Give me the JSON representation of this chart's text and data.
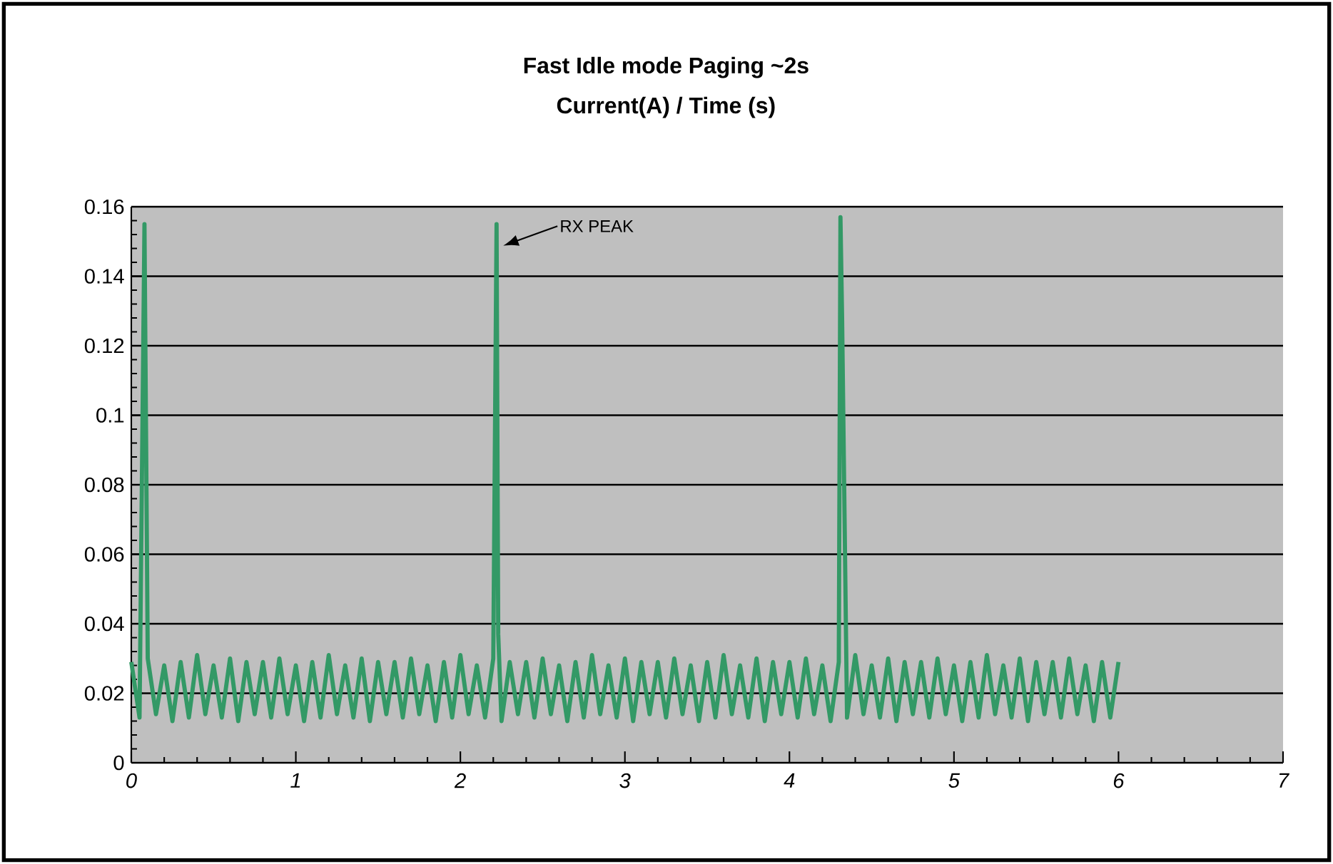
{
  "chart_data": {
    "type": "line",
    "title": "Fast Idle mode    Paging ~2s",
    "subtitle": "Current(A) / Time (s)",
    "annotations": [
      "RX PEAK"
    ],
    "series": [
      {
        "color": "#339966",
        "x": [
          0,
          0.05,
          0.08,
          0.1,
          0.15,
          0.2,
          0.25,
          0.3,
          0.35,
          0.4,
          0.45,
          0.5,
          0.55,
          0.6,
          0.65,
          0.7,
          0.75,
          0.8,
          0.85,
          0.9,
          0.95,
          1,
          1.05,
          1.1,
          1.15,
          1.2,
          1.25,
          1.3,
          1.35,
          1.4,
          1.45,
          1.5,
          1.55,
          1.6,
          1.65,
          1.7,
          1.75,
          1.8,
          1.85,
          1.9,
          1.95,
          2,
          2.05,
          2.1,
          2.15,
          2.2,
          2.22,
          2.23,
          2.25,
          2.3,
          2.35,
          2.4,
          2.45,
          2.5,
          2.55,
          2.6,
          2.65,
          2.7,
          2.75,
          2.8,
          2.85,
          2.9,
          2.95,
          3,
          3.05,
          3.1,
          3.15,
          3.2,
          3.25,
          3.3,
          3.35,
          3.4,
          3.45,
          3.5,
          3.55,
          3.6,
          3.65,
          3.7,
          3.75,
          3.8,
          3.85,
          3.9,
          3.95,
          4,
          4.05,
          4.1,
          4.15,
          4.2,
          4.25,
          4.3,
          4.31,
          4.32,
          4.35,
          4.4,
          4.45,
          4.5,
          4.55,
          4.6,
          4.65,
          4.7,
          4.75,
          4.8,
          4.85,
          4.9,
          4.95,
          5,
          5.05,
          5.1,
          5.15,
          5.2,
          5.25,
          5.3,
          5.35,
          5.4,
          5.45,
          5.5,
          5.55,
          5.6,
          5.65,
          5.7,
          5.75,
          5.8,
          5.85,
          5.9,
          5.95,
          6
        ],
        "values": [
          0.029,
          0.013,
          0.155,
          0.03,
          0.014,
          0.028,
          0.012,
          0.029,
          0.013,
          0.031,
          0.014,
          0.028,
          0.013,
          0.03,
          0.012,
          0.029,
          0.014,
          0.029,
          0.013,
          0.03,
          0.014,
          0.028,
          0.012,
          0.029,
          0.013,
          0.031,
          0.014,
          0.028,
          0.013,
          0.03,
          0.012,
          0.029,
          0.014,
          0.029,
          0.013,
          0.03,
          0.014,
          0.028,
          0.012,
          0.029,
          0.013,
          0.031,
          0.014,
          0.028,
          0.013,
          0.03,
          0.155,
          0.037,
          0.012,
          0.029,
          0.014,
          0.029,
          0.013,
          0.03,
          0.014,
          0.028,
          0.012,
          0.029,
          0.013,
          0.031,
          0.014,
          0.028,
          0.013,
          0.03,
          0.012,
          0.029,
          0.014,
          0.029,
          0.013,
          0.03,
          0.014,
          0.028,
          0.012,
          0.029,
          0.013,
          0.031,
          0.014,
          0.028,
          0.013,
          0.03,
          0.012,
          0.029,
          0.014,
          0.029,
          0.013,
          0.03,
          0.014,
          0.028,
          0.012,
          0.029,
          0.157,
          0.128,
          0.013,
          0.031,
          0.014,
          0.028,
          0.013,
          0.03,
          0.012,
          0.029,
          0.014,
          0.029,
          0.013,
          0.03,
          0.014,
          0.028,
          0.012,
          0.029,
          0.013,
          0.031,
          0.014,
          0.028,
          0.013,
          0.03,
          0.012,
          0.029,
          0.014,
          0.029,
          0.013,
          0.03,
          0.014,
          0.028,
          0.012,
          0.029,
          0.013,
          0.029
        ]
      }
    ],
    "xlim": [
      0,
      7
    ],
    "ylim": [
      0,
      0.16
    ],
    "xticks": [
      0,
      1,
      2,
      3,
      4,
      5,
      6,
      7
    ],
    "yticks": [
      0,
      0.02,
      0.04,
      0.06,
      0.08,
      0.1,
      0.12,
      0.14,
      0.16
    ],
    "grid": "y"
  }
}
